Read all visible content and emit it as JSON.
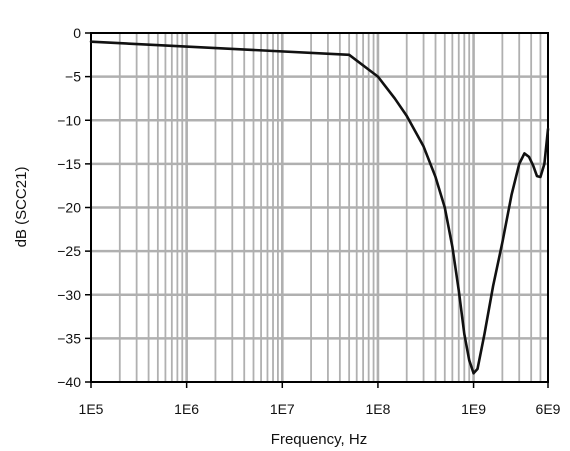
{
  "chart_data": {
    "type": "line",
    "title": "",
    "xlabel": "Frequency, Hz",
    "ylabel": "dB (SCC21)",
    "xscale": "log",
    "xlim": [
      100000,
      6000000000
    ],
    "ylim": [
      -40,
      0
    ],
    "x_ticks": [
      {
        "value": 100000,
        "label": "1E5"
      },
      {
        "value": 1000000,
        "label": "1E6"
      },
      {
        "value": 10000000,
        "label": "1E7"
      },
      {
        "value": 100000000,
        "label": "1E8"
      },
      {
        "value": 1000000000,
        "label": "1E9"
      },
      {
        "value": 6000000000,
        "label": "6E9"
      }
    ],
    "y_ticks": [
      {
        "value": 0,
        "label": "0"
      },
      {
        "value": -5,
        "label": "−5"
      },
      {
        "value": -10,
        "label": "−10"
      },
      {
        "value": -15,
        "label": "−15"
      },
      {
        "value": -20,
        "label": "−20"
      },
      {
        "value": -25,
        "label": "−25"
      },
      {
        "value": -30,
        "label": "−30"
      },
      {
        "value": -35,
        "label": "−35"
      },
      {
        "value": -40,
        "label": "−40"
      }
    ],
    "grid": true,
    "series": [
      {
        "x": [
          100000,
          50000000,
          100000000,
          150000000,
          200000000,
          300000000,
          400000000,
          500000000,
          600000000,
          700000000,
          800000000,
          900000000,
          1000000000,
          1100000000,
          1300000000,
          1600000000,
          2000000000,
          2500000000,
          3000000000,
          3400000000,
          3800000000,
          4200000000,
          4600000000,
          5000000000,
          5500000000,
          6000000000
        ],
        "y": [
          -1.0,
          -2.5,
          -5.0,
          -7.5,
          -9.5,
          -13.0,
          -16.5,
          -20.0,
          -24.5,
          -29.5,
          -34.5,
          -37.5,
          -39.0,
          -38.5,
          -34.5,
          -29.0,
          -24.0,
          -18.5,
          -15.0,
          -13.8,
          -14.2,
          -15.2,
          -16.4,
          -16.5,
          -15.0,
          -11.0
        ]
      }
    ],
    "colors": {
      "line": "#111111",
      "grid": "#b0b0b0",
      "frame": "#000000"
    }
  }
}
